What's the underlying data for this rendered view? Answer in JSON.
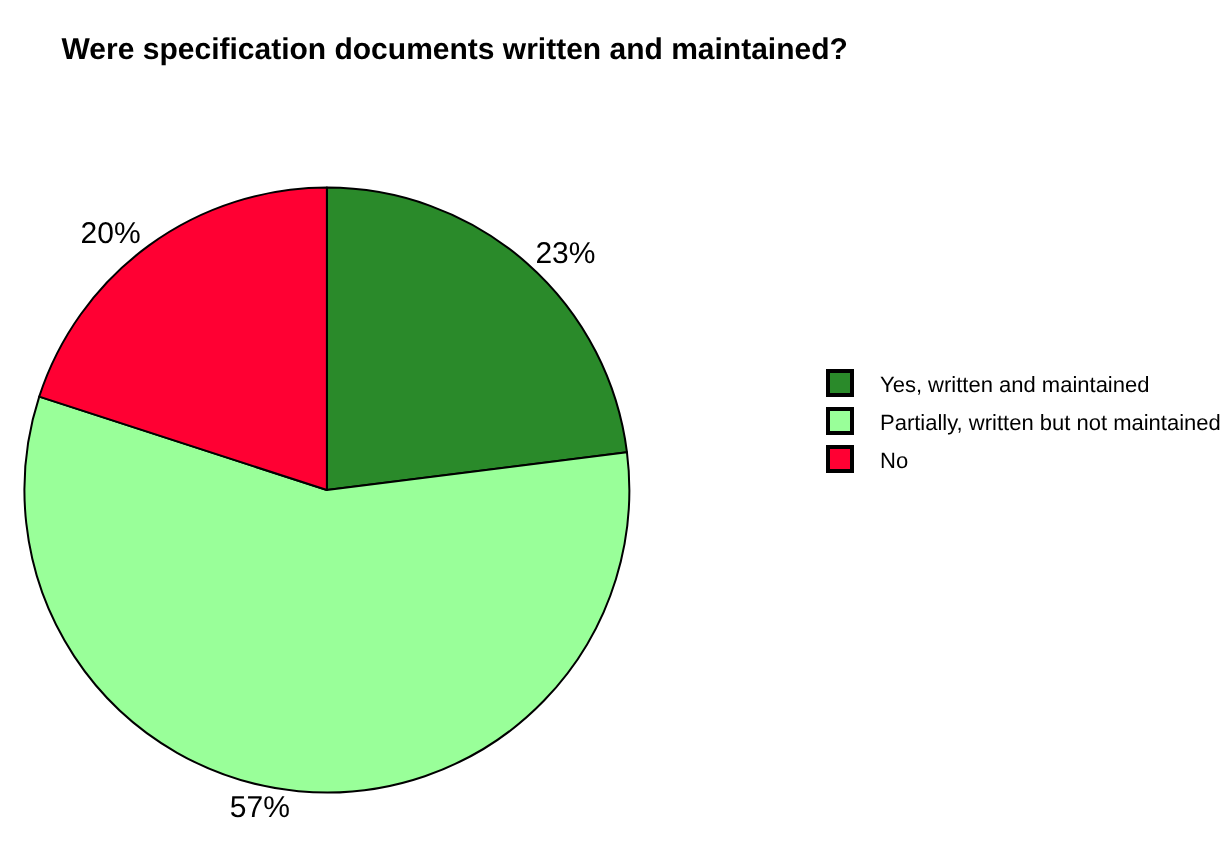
{
  "chart_data": {
    "type": "pie",
    "title": "Were specification documents written and maintained?",
    "categories": [
      "Yes, written and maintained",
      "Partially, written but not maintained",
      "No"
    ],
    "values": [
      23,
      57,
      20
    ],
    "colors": [
      "#2a8a2a",
      "#99ff99",
      "#ff0033"
    ],
    "value_labels": [
      "23%",
      "57%",
      "20%"
    ],
    "legend": "right"
  }
}
